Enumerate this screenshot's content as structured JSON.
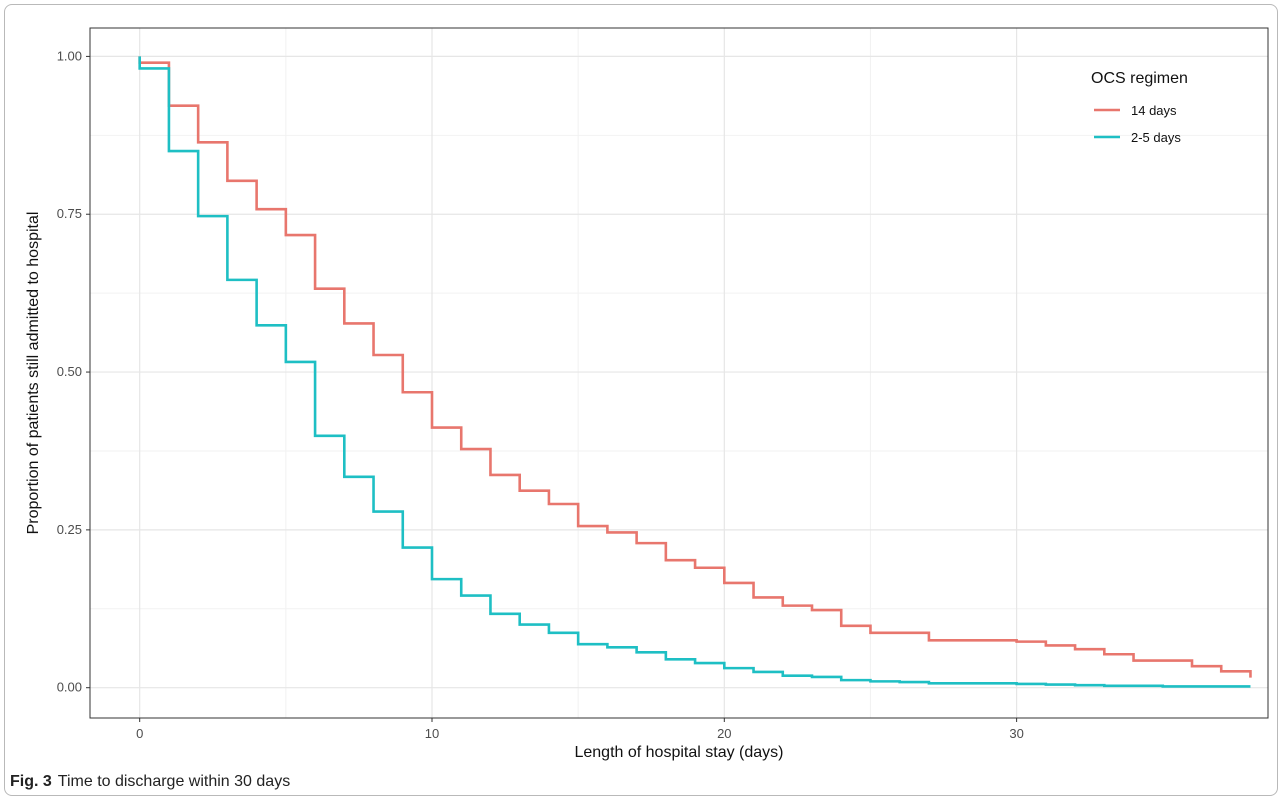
{
  "caption": {
    "label": "Fig. 3",
    "text": "Time to discharge within 30 days"
  },
  "chart_data": {
    "type": "line",
    "step": true,
    "xlabel": "Length of hospital stay (days)",
    "ylabel": "Proportion of patients still admitted to hospital",
    "xlim": [
      -1.7,
      38.6
    ],
    "ylim": [
      -0.048,
      1.045
    ],
    "x_ticks": [
      0,
      10,
      20,
      30
    ],
    "x_tick_labels": [
      "0",
      "10",
      "20",
      "30"
    ],
    "y_ticks": [
      0,
      0.25,
      0.5,
      0.75,
      1
    ],
    "y_tick_labels": [
      "0.00",
      "0.25",
      "0.50",
      "0.75",
      "1.00"
    ],
    "grid": true,
    "legend": {
      "title": "OCS regimen",
      "placement": "top-right"
    },
    "series": [
      {
        "name": "14 days",
        "color": "#e8766d",
        "x": [
          0,
          1,
          2,
          3,
          4,
          5,
          6,
          7,
          8,
          9,
          10,
          11,
          12,
          13,
          14,
          15,
          16,
          17,
          18,
          19,
          20,
          21,
          22,
          23,
          24,
          25,
          26,
          27,
          28,
          29,
          30,
          31,
          32,
          33,
          34,
          35,
          36,
          37,
          38
        ],
        "y": [
          0.99,
          0.922,
          0.864,
          0.803,
          0.758,
          0.717,
          0.632,
          0.577,
          0.527,
          0.468,
          0.412,
          0.378,
          0.337,
          0.312,
          0.291,
          0.256,
          0.246,
          0.229,
          0.202,
          0.19,
          0.166,
          0.143,
          0.13,
          0.123,
          0.098,
          0.087,
          0.087,
          0.075,
          0.075,
          0.075,
          0.073,
          0.067,
          0.061,
          0.053,
          0.043,
          0.043,
          0.034,
          0.026,
          0.016
        ]
      },
      {
        "name": "2-5 days",
        "color": "#1ebfc4",
        "x": [
          0,
          1,
          2,
          3,
          4,
          5,
          6,
          7,
          8,
          9,
          10,
          11,
          12,
          13,
          14,
          15,
          16,
          17,
          18,
          19,
          20,
          21,
          22,
          23,
          24,
          25,
          26,
          27,
          28,
          29,
          30,
          31,
          32,
          33,
          34,
          35,
          36,
          37,
          38
        ],
        "y": [
          0.981,
          0.85,
          0.747,
          0.646,
          0.574,
          0.516,
          0.399,
          0.334,
          0.279,
          0.222,
          0.172,
          0.146,
          0.117,
          0.1,
          0.087,
          0.069,
          0.064,
          0.056,
          0.045,
          0.039,
          0.031,
          0.025,
          0.019,
          0.017,
          0.012,
          0.01,
          0.009,
          0.007,
          0.007,
          0.007,
          0.006,
          0.005,
          0.004,
          0.003,
          0.003,
          0.002,
          0.002,
          0.002,
          0.002
        ]
      }
    ]
  }
}
